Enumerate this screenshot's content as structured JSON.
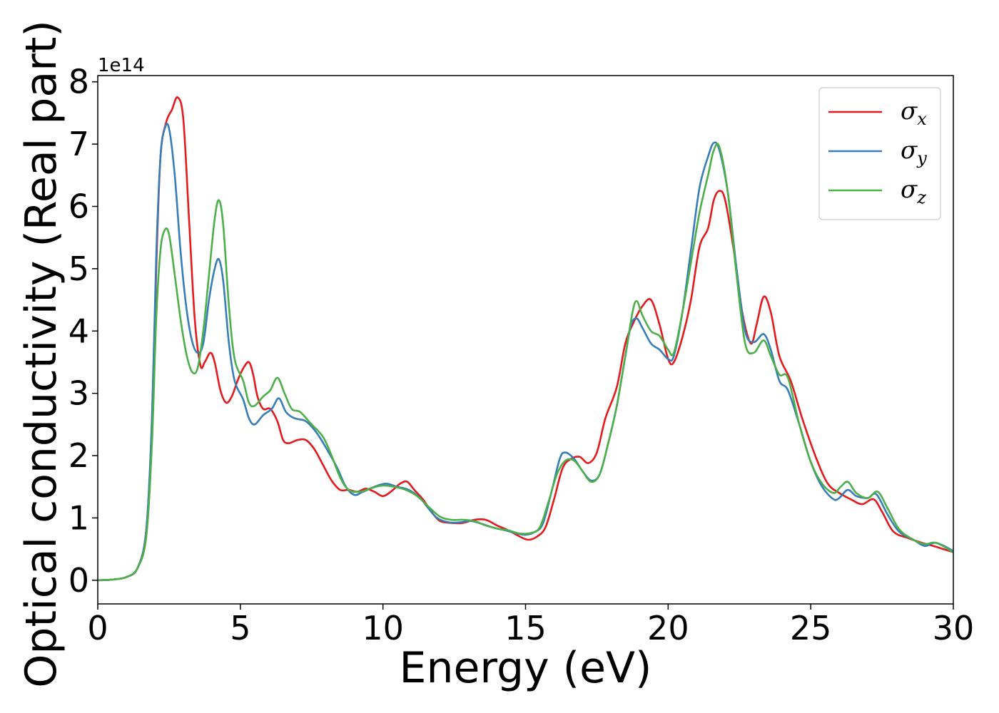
{
  "chart_data": {
    "type": "line",
    "title": "",
    "xlabel": "Energy (eV)",
    "ylabel": "Optical conductivity (Real part)",
    "y_offset_label": "1e14",
    "xlim": [
      0,
      30
    ],
    "ylim": [
      -0.38,
      8.1
    ],
    "xticks": [
      0,
      5,
      10,
      15,
      20,
      25,
      30
    ],
    "yticks": [
      0,
      1,
      2,
      3,
      4,
      5,
      6,
      7,
      8
    ],
    "grid": false,
    "legend_position": "top-right",
    "series": [
      {
        "name": "σ",
        "subscript": "x",
        "color": "#e41a1c",
        "points": [
          [
            0,
            0
          ],
          [
            0.5,
            0.01
          ],
          [
            1,
            0.05
          ],
          [
            1.4,
            0.2
          ],
          [
            1.7,
            0.8
          ],
          [
            1.9,
            2.5
          ],
          [
            2.05,
            5.0
          ],
          [
            2.2,
            6.8
          ],
          [
            2.4,
            7.35
          ],
          [
            2.6,
            7.55
          ],
          [
            2.8,
            7.75
          ],
          [
            3.0,
            7.4
          ],
          [
            3.2,
            5.8
          ],
          [
            3.4,
            4.2
          ],
          [
            3.6,
            3.45
          ],
          [
            3.75,
            3.5
          ],
          [
            3.95,
            3.65
          ],
          [
            4.1,
            3.5
          ],
          [
            4.3,
            3.05
          ],
          [
            4.5,
            2.85
          ],
          [
            4.7,
            2.95
          ],
          [
            4.9,
            3.2
          ],
          [
            5.1,
            3.4
          ],
          [
            5.3,
            3.5
          ],
          [
            5.45,
            3.3
          ],
          [
            5.6,
            2.95
          ],
          [
            5.8,
            2.75
          ],
          [
            6.05,
            2.75
          ],
          [
            6.3,
            2.55
          ],
          [
            6.5,
            2.25
          ],
          [
            6.7,
            2.2
          ],
          [
            7.0,
            2.25
          ],
          [
            7.3,
            2.25
          ],
          [
            7.6,
            2.1
          ],
          [
            7.9,
            1.85
          ],
          [
            8.2,
            1.6
          ],
          [
            8.5,
            1.45
          ],
          [
            8.8,
            1.45
          ],
          [
            9.1,
            1.42
          ],
          [
            9.4,
            1.47
          ],
          [
            9.7,
            1.42
          ],
          [
            10.0,
            1.35
          ],
          [
            10.3,
            1.43
          ],
          [
            10.6,
            1.55
          ],
          [
            10.85,
            1.58
          ],
          [
            11.1,
            1.45
          ],
          [
            11.4,
            1.3
          ],
          [
            11.7,
            1.1
          ],
          [
            12.0,
            0.95
          ],
          [
            12.4,
            0.92
          ],
          [
            12.8,
            0.92
          ],
          [
            13.2,
            0.97
          ],
          [
            13.6,
            0.97
          ],
          [
            14.0,
            0.88
          ],
          [
            14.4,
            0.8
          ],
          [
            14.8,
            0.7
          ],
          [
            15.1,
            0.65
          ],
          [
            15.4,
            0.7
          ],
          [
            15.7,
            0.85
          ],
          [
            16.0,
            1.3
          ],
          [
            16.3,
            1.8
          ],
          [
            16.6,
            1.95
          ],
          [
            16.9,
            1.98
          ],
          [
            17.2,
            1.88
          ],
          [
            17.5,
            2.05
          ],
          [
            17.8,
            2.6
          ],
          [
            18.2,
            3.1
          ],
          [
            18.5,
            3.8
          ],
          [
            18.8,
            4.15
          ],
          [
            19.1,
            4.4
          ],
          [
            19.4,
            4.5
          ],
          [
            19.7,
            4.1
          ],
          [
            20.0,
            3.55
          ],
          [
            20.2,
            3.5
          ],
          [
            20.5,
            3.9
          ],
          [
            20.8,
            4.5
          ],
          [
            21.1,
            5.35
          ],
          [
            21.4,
            5.65
          ],
          [
            21.6,
            6.1
          ],
          [
            21.8,
            6.25
          ],
          [
            22.0,
            6.1
          ],
          [
            22.3,
            5.3
          ],
          [
            22.6,
            4.3
          ],
          [
            22.9,
            3.8
          ],
          [
            23.1,
            4.1
          ],
          [
            23.35,
            4.55
          ],
          [
            23.6,
            4.3
          ],
          [
            23.9,
            3.6
          ],
          [
            24.3,
            3.2
          ],
          [
            24.7,
            2.6
          ],
          [
            25.2,
            1.95
          ],
          [
            25.6,
            1.55
          ],
          [
            26.0,
            1.4
          ],
          [
            26.4,
            1.3
          ],
          [
            26.8,
            1.22
          ],
          [
            27.2,
            1.3
          ],
          [
            27.5,
            1.1
          ],
          [
            27.9,
            0.78
          ],
          [
            28.4,
            0.68
          ],
          [
            28.9,
            0.6
          ],
          [
            29.3,
            0.55
          ],
          [
            30,
            0.45
          ]
        ]
      },
      {
        "name": "σ",
        "subscript": "y",
        "color": "#377eb8",
        "points": [
          [
            0,
            0
          ],
          [
            0.5,
            0.01
          ],
          [
            1,
            0.05
          ],
          [
            1.4,
            0.2
          ],
          [
            1.7,
            0.8
          ],
          [
            1.9,
            2.6
          ],
          [
            2.05,
            5.2
          ],
          [
            2.2,
            6.8
          ],
          [
            2.35,
            7.25
          ],
          [
            2.5,
            7.25
          ],
          [
            2.7,
            6.5
          ],
          [
            2.9,
            5.3
          ],
          [
            3.1,
            4.4
          ],
          [
            3.3,
            3.85
          ],
          [
            3.5,
            3.65
          ],
          [
            3.7,
            3.8
          ],
          [
            3.9,
            4.5
          ],
          [
            4.1,
            5.0
          ],
          [
            4.25,
            5.15
          ],
          [
            4.4,
            4.8
          ],
          [
            4.6,
            3.8
          ],
          [
            4.8,
            3.2
          ],
          [
            5.1,
            2.9
          ],
          [
            5.3,
            2.6
          ],
          [
            5.5,
            2.5
          ],
          [
            5.8,
            2.65
          ],
          [
            6.1,
            2.75
          ],
          [
            6.35,
            2.92
          ],
          [
            6.6,
            2.7
          ],
          [
            6.9,
            2.6
          ],
          [
            7.3,
            2.55
          ],
          [
            7.7,
            2.35
          ],
          [
            8.1,
            2.05
          ],
          [
            8.4,
            1.8
          ],
          [
            8.7,
            1.5
          ],
          [
            9.0,
            1.37
          ],
          [
            9.3,
            1.42
          ],
          [
            9.7,
            1.5
          ],
          [
            10.1,
            1.55
          ],
          [
            10.5,
            1.5
          ],
          [
            10.9,
            1.45
          ],
          [
            11.3,
            1.32
          ],
          [
            11.6,
            1.15
          ],
          [
            11.9,
            1.0
          ],
          [
            12.3,
            0.93
          ],
          [
            12.7,
            0.93
          ],
          [
            13.1,
            0.95
          ],
          [
            13.5,
            0.9
          ],
          [
            13.9,
            0.84
          ],
          [
            14.3,
            0.8
          ],
          [
            14.7,
            0.75
          ],
          [
            15.0,
            0.73
          ],
          [
            15.3,
            0.77
          ],
          [
            15.6,
            0.9
          ],
          [
            15.9,
            1.4
          ],
          [
            16.2,
            1.95
          ],
          [
            16.4,
            2.05
          ],
          [
            16.7,
            1.95
          ],
          [
            17.0,
            1.75
          ],
          [
            17.3,
            1.6
          ],
          [
            17.6,
            1.7
          ],
          [
            17.9,
            2.2
          ],
          [
            18.2,
            2.8
          ],
          [
            18.5,
            3.6
          ],
          [
            18.7,
            4.1
          ],
          [
            18.9,
            4.2
          ],
          [
            19.1,
            4.05
          ],
          [
            19.4,
            3.8
          ],
          [
            19.7,
            3.7
          ],
          [
            20.0,
            3.55
          ],
          [
            20.2,
            3.6
          ],
          [
            20.5,
            4.3
          ],
          [
            20.8,
            5.3
          ],
          [
            21.1,
            6.3
          ],
          [
            21.4,
            6.8
          ],
          [
            21.6,
            7.02
          ],
          [
            21.8,
            6.9
          ],
          [
            22.1,
            6.2
          ],
          [
            22.4,
            5.0
          ],
          [
            22.7,
            4.0
          ],
          [
            23.0,
            3.82
          ],
          [
            23.35,
            3.95
          ],
          [
            23.6,
            3.7
          ],
          [
            23.9,
            3.2
          ],
          [
            24.2,
            3.05
          ],
          [
            24.6,
            2.5
          ],
          [
            25.0,
            1.9
          ],
          [
            25.4,
            1.5
          ],
          [
            25.8,
            1.3
          ],
          [
            26.0,
            1.32
          ],
          [
            26.3,
            1.45
          ],
          [
            26.6,
            1.35
          ],
          [
            27.0,
            1.32
          ],
          [
            27.3,
            1.38
          ],
          [
            27.7,
            1.05
          ],
          [
            28.1,
            0.78
          ],
          [
            28.6,
            0.65
          ],
          [
            29.0,
            0.55
          ],
          [
            29.4,
            0.6
          ],
          [
            30,
            0.47
          ]
        ]
      },
      {
        "name": "σ",
        "subscript": "z",
        "color": "#4daf4a",
        "points": [
          [
            0,
            0
          ],
          [
            0.5,
            0.01
          ],
          [
            1,
            0.05
          ],
          [
            1.4,
            0.2
          ],
          [
            1.7,
            0.7
          ],
          [
            1.9,
            2.2
          ],
          [
            2.05,
            4.2
          ],
          [
            2.2,
            5.3
          ],
          [
            2.35,
            5.62
          ],
          [
            2.5,
            5.55
          ],
          [
            2.7,
            4.9
          ],
          [
            2.9,
            4.2
          ],
          [
            3.1,
            3.65
          ],
          [
            3.3,
            3.35
          ],
          [
            3.5,
            3.4
          ],
          [
            3.7,
            4.0
          ],
          [
            3.9,
            4.9
          ],
          [
            4.1,
            5.8
          ],
          [
            4.25,
            6.1
          ],
          [
            4.4,
            5.7
          ],
          [
            4.6,
            4.4
          ],
          [
            4.8,
            3.55
          ],
          [
            5.1,
            3.2
          ],
          [
            5.3,
            2.85
          ],
          [
            5.5,
            2.8
          ],
          [
            5.8,
            2.95
          ],
          [
            6.05,
            3.05
          ],
          [
            6.3,
            3.25
          ],
          [
            6.55,
            3.0
          ],
          [
            6.8,
            2.75
          ],
          [
            7.1,
            2.7
          ],
          [
            7.5,
            2.5
          ],
          [
            7.9,
            2.3
          ],
          [
            8.2,
            2.0
          ],
          [
            8.5,
            1.65
          ],
          [
            8.8,
            1.45
          ],
          [
            9.2,
            1.42
          ],
          [
            9.6,
            1.48
          ],
          [
            10.0,
            1.52
          ],
          [
            10.4,
            1.5
          ],
          [
            10.8,
            1.45
          ],
          [
            11.2,
            1.35
          ],
          [
            11.6,
            1.18
          ],
          [
            12.0,
            1.02
          ],
          [
            12.4,
            0.97
          ],
          [
            12.8,
            0.97
          ],
          [
            13.2,
            0.95
          ],
          [
            13.6,
            0.88
          ],
          [
            14.0,
            0.83
          ],
          [
            14.4,
            0.8
          ],
          [
            14.8,
            0.75
          ],
          [
            15.2,
            0.76
          ],
          [
            15.5,
            0.85
          ],
          [
            15.8,
            1.25
          ],
          [
            16.1,
            1.7
          ],
          [
            16.4,
            1.92
          ],
          [
            16.7,
            1.92
          ],
          [
            17.0,
            1.75
          ],
          [
            17.3,
            1.58
          ],
          [
            17.6,
            1.7
          ],
          [
            17.9,
            2.2
          ],
          [
            18.2,
            2.8
          ],
          [
            18.5,
            3.6
          ],
          [
            18.75,
            4.3
          ],
          [
            18.9,
            4.48
          ],
          [
            19.1,
            4.25
          ],
          [
            19.4,
            4.0
          ],
          [
            19.7,
            3.92
          ],
          [
            20.0,
            3.7
          ],
          [
            20.2,
            3.65
          ],
          [
            20.5,
            4.3
          ],
          [
            20.8,
            5.1
          ],
          [
            21.1,
            5.9
          ],
          [
            21.4,
            6.5
          ],
          [
            21.6,
            6.9
          ],
          [
            21.8,
            6.95
          ],
          [
            22.1,
            6.2
          ],
          [
            22.4,
            4.9
          ],
          [
            22.7,
            3.8
          ],
          [
            23.0,
            3.65
          ],
          [
            23.35,
            3.85
          ],
          [
            23.6,
            3.6
          ],
          [
            23.9,
            3.3
          ],
          [
            24.2,
            3.25
          ],
          [
            24.6,
            2.5
          ],
          [
            25.0,
            1.9
          ],
          [
            25.4,
            1.55
          ],
          [
            25.8,
            1.4
          ],
          [
            26.05,
            1.5
          ],
          [
            26.3,
            1.58
          ],
          [
            26.6,
            1.4
          ],
          [
            27.0,
            1.32
          ],
          [
            27.35,
            1.42
          ],
          [
            27.7,
            1.15
          ],
          [
            28.1,
            0.82
          ],
          [
            28.6,
            0.65
          ],
          [
            29.0,
            0.58
          ],
          [
            29.4,
            0.6
          ],
          [
            30,
            0.45
          ]
        ]
      }
    ]
  }
}
